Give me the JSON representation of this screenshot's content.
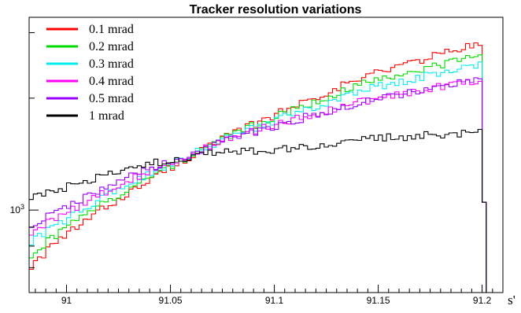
{
  "chart_data": {
    "type": "line",
    "style": "step-histogram",
    "title": "Tracker resolution variations",
    "xlabel": "s'",
    "ylabel": "",
    "y_scale": "log",
    "xlim": [
      90.982,
      91.21
    ],
    "ylim": [
      600,
      3300
    ],
    "x_ticks": [
      {
        "value": 91.0,
        "label": "91"
      },
      {
        "value": 91.05,
        "label": "91.05"
      },
      {
        "value": 91.1,
        "label": "91.1"
      },
      {
        "value": 91.15,
        "label": "91.15"
      },
      {
        "value": 91.2,
        "label": "91.2"
      }
    ],
    "y_ticks": [
      {
        "value": 1000,
        "label": "10",
        "exponent": "3"
      }
    ],
    "bins": {
      "start": 90.982,
      "end": 91.2,
      "count": 109,
      "edge_bin_value": 1050
    },
    "grid": false,
    "legend_position": "top-left",
    "series": [
      {
        "name": "0.1 mrad",
        "color": "#ff0000",
        "anchors": [
          [
            90.982,
            700
          ],
          [
            91.04,
            1200
          ],
          [
            91.1,
            1800
          ],
          [
            91.15,
            2350
          ],
          [
            91.199,
            2800
          ]
        ]
      },
      {
        "name": "0.2 mrad",
        "color": "#00dd00",
        "anchors": [
          [
            90.982,
            750
          ],
          [
            91.04,
            1220
          ],
          [
            91.1,
            1780
          ],
          [
            91.15,
            2250
          ],
          [
            91.199,
            2600
          ]
        ]
      },
      {
        "name": "0.3 mrad",
        "color": "#00eeee",
        "anchors": [
          [
            90.982,
            810
          ],
          [
            91.04,
            1250
          ],
          [
            91.1,
            1740
          ],
          [
            91.15,
            2150
          ],
          [
            91.199,
            2450
          ]
        ]
      },
      {
        "name": "0.4 mrad",
        "color": "#ff00ff",
        "anchors": [
          [
            90.982,
            860
          ],
          [
            91.04,
            1270
          ],
          [
            91.1,
            1700
          ],
          [
            91.15,
            2000
          ],
          [
            91.199,
            2250
          ]
        ]
      },
      {
        "name": "0.5 mrad",
        "color": "#9900ff",
        "anchors": [
          [
            90.982,
            900
          ],
          [
            91.04,
            1290
          ],
          [
            91.1,
            1680
          ],
          [
            91.15,
            2000
          ],
          [
            91.199,
            2250
          ]
        ]
      },
      {
        "name": "1 mrad",
        "color": "#000000",
        "anchors": [
          [
            90.982,
            1070
          ],
          [
            91.04,
            1330
          ],
          [
            91.07,
            1420
          ],
          [
            91.1,
            1450
          ],
          [
            91.15,
            1560
          ],
          [
            91.199,
            1620
          ]
        ]
      }
    ]
  }
}
